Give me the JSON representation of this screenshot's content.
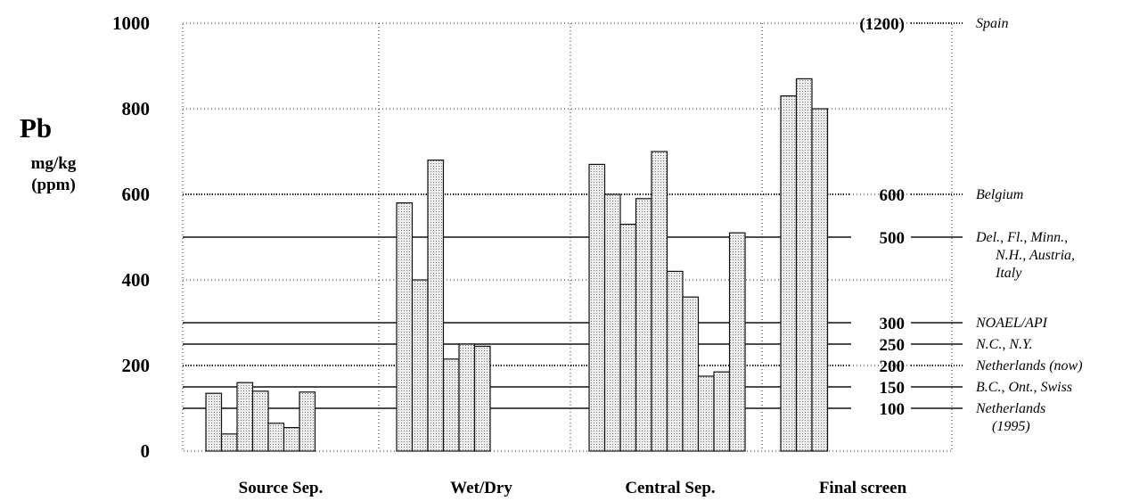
{
  "chart_data": {
    "type": "bar",
    "ylabel": "Pb",
    "yunit_line1": "mg/kg",
    "yunit_line2": "(ppm)",
    "ylim": [
      0,
      1000
    ],
    "yticks": [
      0,
      200,
      400,
      600,
      800,
      1000
    ],
    "grid": true,
    "groups": [
      {
        "name": "Source Sep.",
        "values": [
          135,
          40,
          160,
          140,
          65,
          55,
          138
        ]
      },
      {
        "name": "Wet/Dry",
        "values": [
          580,
          400,
          680,
          215,
          250,
          245
        ]
      },
      {
        "name": "Central Sep.",
        "values": [
          670,
          600,
          530,
          590,
          700,
          420,
          360,
          175,
          185,
          510
        ]
      },
      {
        "name": "Final screen",
        "values": [
          830,
          870,
          800
        ]
      }
    ],
    "bar_color": "#d9d9d9",
    "reference_lines": [
      {
        "value": 1200,
        "label": "(1200)",
        "jurisdiction": [
          "Spain"
        ],
        "style": "dotted",
        "on_axis": false
      },
      {
        "value": 600,
        "label": "600",
        "jurisdiction": [
          "Belgium"
        ],
        "style": "dotted"
      },
      {
        "value": 500,
        "label": "500",
        "jurisdiction": [
          "Del., Fl., Minn.,",
          "N.H., Austria,",
          "Italy"
        ],
        "style": "solid"
      },
      {
        "value": 300,
        "label": "300",
        "jurisdiction": [
          "NOAEL/API"
        ],
        "style": "solid"
      },
      {
        "value": 250,
        "label": "250",
        "jurisdiction": [
          "N.C., N.Y."
        ],
        "style": "solid"
      },
      {
        "value": 200,
        "label": "200",
        "jurisdiction": [
          "Netherlands (now)"
        ],
        "style": "dotted"
      },
      {
        "value": 150,
        "label": "150",
        "jurisdiction": [
          "B.C., Ont., Swiss"
        ],
        "style": "solid"
      },
      {
        "value": 100,
        "label": "100",
        "jurisdiction": [
          "Netherlands",
          "(1995)"
        ],
        "style": "solid"
      }
    ]
  }
}
